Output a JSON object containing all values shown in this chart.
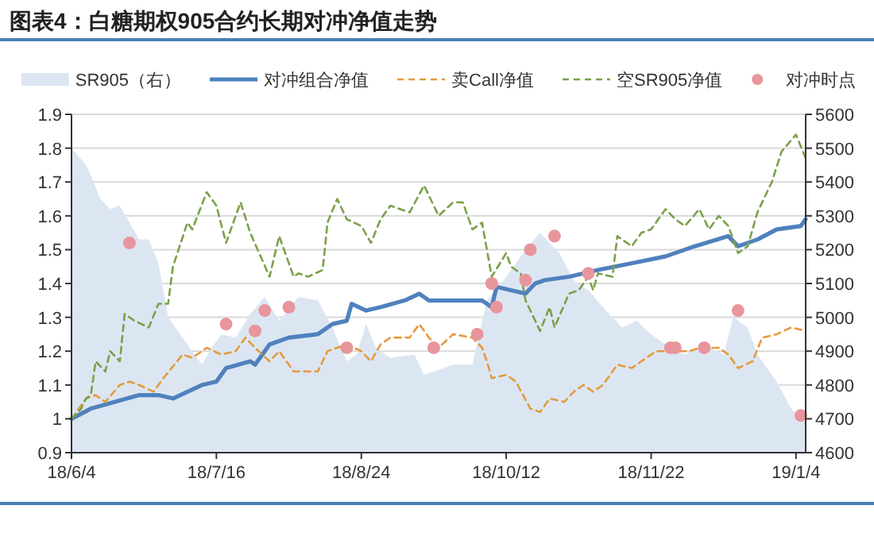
{
  "chart_data": {
    "type": "line",
    "title": "图表4：白糖期权905合约长期对冲净值走势",
    "categories": [
      "18/6/4",
      null,
      null,
      null,
      null,
      null,
      null,
      null,
      null,
      null,
      null,
      null,
      null,
      null,
      null,
      null,
      null,
      null,
      null,
      null,
      null,
      null,
      null,
      null,
      null,
      null,
      null,
      null,
      null,
      null,
      "18/7/16",
      null,
      null,
      null,
      null,
      null,
      null,
      null,
      null,
      null,
      null,
      null,
      null,
      null,
      null,
      null,
      null,
      null,
      null,
      null,
      null,
      null,
      null,
      null,
      null,
      null,
      null,
      null,
      null,
      null,
      "18/8/24",
      null,
      null,
      null,
      null,
      null,
      null,
      null,
      null,
      null,
      null,
      null,
      null,
      null,
      null,
      null,
      null,
      null,
      null,
      null,
      null,
      null,
      null,
      null,
      null,
      null,
      null,
      null,
      null,
      null,
      "18/10/12",
      null,
      null,
      null,
      null,
      null,
      null,
      null,
      null,
      null,
      null,
      null,
      null,
      null,
      null,
      null,
      null,
      null,
      null,
      null,
      null,
      null,
      null,
      null,
      null,
      null,
      null,
      null,
      null,
      null,
      "18/11/22",
      null,
      null,
      null,
      null,
      null,
      null,
      null,
      null,
      null,
      null,
      null,
      null,
      null,
      null,
      null,
      null,
      null,
      null,
      null,
      null,
      null,
      null,
      null,
      null,
      null,
      null,
      null,
      null,
      null,
      "19/1/4",
      null,
      null
    ],
    "ylim": [
      0.9,
      1.9
    ],
    "yticks": [
      0.9,
      1,
      1.1,
      1.2,
      1.3,
      1.4,
      1.5,
      1.6,
      1.7,
      1.8,
      1.9
    ],
    "y2lim": [
      4600,
      5600
    ],
    "y2ticks": [
      4600,
      4700,
      4800,
      4900,
      5000,
      5100,
      5200,
      5300,
      5400,
      5500,
      5600
    ],
    "grid": "y",
    "legend": "top",
    "series": [
      {
        "type": "area",
        "axis": "y2",
        "name": "SR905（右）",
        "color": "#dce6f2",
        "values": [
          5500,
          null,
          null,
          5450,
          5420,
          null,
          5350,
          null,
          5320,
          null,
          5330,
          null,
          null,
          null,
          5230,
          null,
          5230,
          null,
          5160,
          null,
          5000,
          null,
          null,
          null,
          4920,
          null,
          null,
          4860,
          null,
          4910,
          null,
          4950,
          null,
          null,
          4940,
          null,
          null,
          5010,
          null,
          null,
          5060,
          null,
          null,
          4990,
          null,
          null,
          null,
          5060,
          null,
          null,
          null,
          5050,
          null,
          null,
          4970,
          null,
          null,
          4870,
          null,
          4890,
          null,
          4980,
          null,
          4910,
          null,
          null,
          4880,
          null,
          null,
          null,
          null,
          4890,
          null,
          4830,
          null,
          null,
          null,
          null,
          null,
          4860,
          null,
          null,
          null,
          4860,
          null,
          null,
          5050,
          null,
          null,
          null,
          5120,
          null,
          null,
          null,
          5200,
          null,
          null,
          5250,
          null,
          null,
          null,
          5190,
          null,
          null,
          5110,
          null,
          null,
          5080,
          null,
          null,
          5030,
          null,
          null,
          null,
          4970,
          null,
          null,
          4990,
          null,
          null,
          4950,
          null,
          null,
          null,
          4910,
          null,
          null,
          4890,
          null,
          null,
          null,
          4920,
          null,
          null,
          null,
          4890,
          null,
          5000,
          null,
          null,
          4970,
          null,
          4890,
          null,
          null,
          null,
          4810,
          null,
          null,
          4730,
          null,
          null,
          4690
        ]
      },
      {
        "name": "对冲组合净值",
        "color": "#4f81bd",
        "line_style": "solid",
        "values": [
          1.0,
          null,
          null,
          null,
          1.03,
          null,
          null,
          null,
          null,
          1.05,
          null,
          null,
          null,
          null,
          1.07,
          null,
          null,
          null,
          1.07,
          null,
          null,
          1.06,
          null,
          null,
          null,
          null,
          null,
          1.1,
          null,
          null,
          1.11,
          null,
          1.15,
          null,
          null,
          null,
          null,
          1.17,
          1.16,
          null,
          1.2,
          1.22,
          null,
          null,
          null,
          1.24,
          null,
          null,
          null,
          null,
          null,
          1.25,
          null,
          null,
          1.28,
          null,
          null,
          1.29,
          1.34,
          null,
          null,
          1.32,
          null,
          null,
          1.33,
          null,
          null,
          null,
          null,
          1.35,
          null,
          null,
          1.37,
          null,
          1.35,
          null,
          null,
          null,
          null,
          null,
          null,
          null,
          null,
          null,
          null,
          1.35,
          null,
          1.33,
          1.39,
          null,
          null,
          null,
          null,
          null,
          1.37,
          null,
          1.4,
          null,
          1.41,
          null,
          null,
          null,
          null,
          1.42,
          null,
          null,
          null,
          null,
          null,
          1.44,
          null,
          null,
          null,
          null,
          null,
          null,
          1.46,
          null,
          null,
          null,
          null,
          null,
          null,
          1.48,
          null,
          null,
          null,
          null,
          null,
          1.51,
          null,
          null,
          null,
          null,
          null,
          null,
          1.54,
          null,
          1.51,
          null,
          null,
          null,
          1.53,
          null,
          null,
          null,
          1.56,
          null,
          null,
          null,
          null,
          1.57,
          1.59
        ]
      },
      {
        "name": "卖Call净值",
        "color": "#e59a3c",
        "line_style": "dashed",
        "values": [
          1.0,
          null,
          null,
          1.06,
          null,
          1.07,
          null,
          1.05,
          null,
          null,
          1.1,
          null,
          1.11,
          null,
          1.1,
          null,
          null,
          1.08,
          null,
          1.12,
          null,
          null,
          null,
          1.19,
          null,
          1.18,
          null,
          null,
          1.21,
          null,
          null,
          1.19,
          null,
          null,
          1.2,
          null,
          1.24,
          null,
          1.21,
          null,
          null,
          1.17,
          null,
          1.2,
          null,
          null,
          1.14,
          null,
          null,
          null,
          null,
          1.14,
          null,
          1.2,
          null,
          null,
          null,
          1.22,
          null,
          null,
          1.2,
          null,
          1.17,
          null,
          1.22,
          null,
          1.24,
          null,
          null,
          null,
          1.24,
          null,
          1.28,
          null,
          1.24,
          null,
          1.21,
          null,
          null,
          1.25,
          null,
          null,
          null,
          1.24,
          null,
          1.21,
          1.17,
          1.12,
          null,
          null,
          1.13,
          null,
          1.11,
          null,
          null,
          1.03,
          null,
          1.02,
          null,
          1.06,
          null,
          null,
          1.05,
          null,
          1.08,
          null,
          1.1,
          null,
          1.08,
          null,
          1.1,
          null,
          null,
          1.16,
          null,
          null,
          1.15,
          null,
          1.17,
          null,
          null,
          1.2,
          null,
          null,
          null,
          1.2,
          null,
          null,
          1.2,
          null,
          1.21,
          null,
          null,
          null,
          1.21,
          null,
          1.19,
          null,
          1.15,
          null,
          null,
          1.17,
          null,
          1.24,
          null,
          null,
          1.25,
          null,
          null,
          1.27,
          null,
          null,
          1.26
        ]
      },
      {
        "name": "空SR905净值",
        "color": "#7aa14a",
        "line_style": "dashed",
        "values": [
          1.0,
          null,
          1.03,
          1.06,
          1.07,
          1.17,
          null,
          1.14,
          1.2,
          null,
          1.17,
          1.31,
          null,
          1.29,
          null,
          null,
          1.27,
          null,
          1.34,
          null,
          1.34,
          1.45,
          null,
          null,
          1.58,
          1.56,
          null,
          null,
          1.67,
          null,
          1.63,
          null,
          1.52,
          null,
          null,
          1.64,
          null,
          1.55,
          null,
          null,
          null,
          1.42,
          null,
          1.54,
          null,
          null,
          1.42,
          1.43,
          null,
          1.42,
          null,
          null,
          1.44,
          1.58,
          null,
          1.65,
          null,
          1.59,
          null,
          null,
          1.57,
          null,
          1.52,
          null,
          1.59,
          null,
          1.63,
          null,
          null,
          null,
          1.61,
          null,
          null,
          1.69,
          null,
          null,
          1.6,
          null,
          null,
          1.64,
          null,
          1.64,
          null,
          1.56,
          null,
          1.58,
          null,
          1.42,
          null,
          null,
          1.49,
          1.45,
          null,
          1.43,
          1.35,
          null,
          null,
          1.26,
          null,
          1.33,
          1.27,
          null,
          null,
          1.37,
          null,
          1.38,
          null,
          1.42,
          1.38,
          1.43,
          null,
          null,
          1.42,
          1.54,
          null,
          null,
          1.51,
          null,
          1.55,
          null,
          1.56,
          null,
          null,
          1.62,
          null,
          1.59,
          null,
          1.57,
          null,
          null,
          1.62,
          null,
          1.56,
          null,
          1.6,
          null,
          1.57,
          null,
          1.49,
          null,
          1.51,
          null,
          1.61,
          null,
          null,
          1.7,
          null,
          1.79,
          null,
          null,
          1.84,
          null,
          1.77
        ]
      },
      {
        "type": "scatter",
        "name": "对冲时点",
        "color": "#e8959b",
        "marker": "circle",
        "values": [
          null,
          null,
          null,
          null,
          null,
          null,
          null,
          null,
          null,
          null,
          null,
          null,
          1.52,
          null,
          null,
          null,
          null,
          null,
          null,
          null,
          null,
          null,
          null,
          null,
          null,
          null,
          null,
          null,
          null,
          null,
          null,
          null,
          1.28,
          null,
          null,
          null,
          null,
          null,
          1.26,
          null,
          1.32,
          null,
          null,
          null,
          null,
          1.33,
          null,
          null,
          null,
          null,
          null,
          null,
          null,
          null,
          null,
          null,
          null,
          1.21,
          null,
          null,
          null,
          null,
          null,
          null,
          null,
          null,
          null,
          null,
          null,
          null,
          null,
          null,
          null,
          null,
          null,
          1.21,
          null,
          null,
          null,
          null,
          null,
          null,
          null,
          null,
          1.25,
          null,
          null,
          1.4,
          1.33,
          null,
          null,
          null,
          null,
          null,
          1.41,
          1.5,
          null,
          null,
          null,
          null,
          1.54,
          null,
          null,
          null,
          null,
          null,
          null,
          1.43,
          null,
          null,
          null,
          null,
          null,
          null,
          null,
          null,
          null,
          null,
          null,
          null,
          null,
          null,
          null,
          null,
          1.21,
          1.21,
          null,
          null,
          null,
          null,
          null,
          1.21,
          null,
          null,
          null,
          null,
          null,
          null,
          1.32,
          null,
          null,
          null,
          null,
          null,
          null,
          null,
          null,
          null,
          null,
          null,
          null,
          1.01,
          null
        ]
      }
    ]
  }
}
